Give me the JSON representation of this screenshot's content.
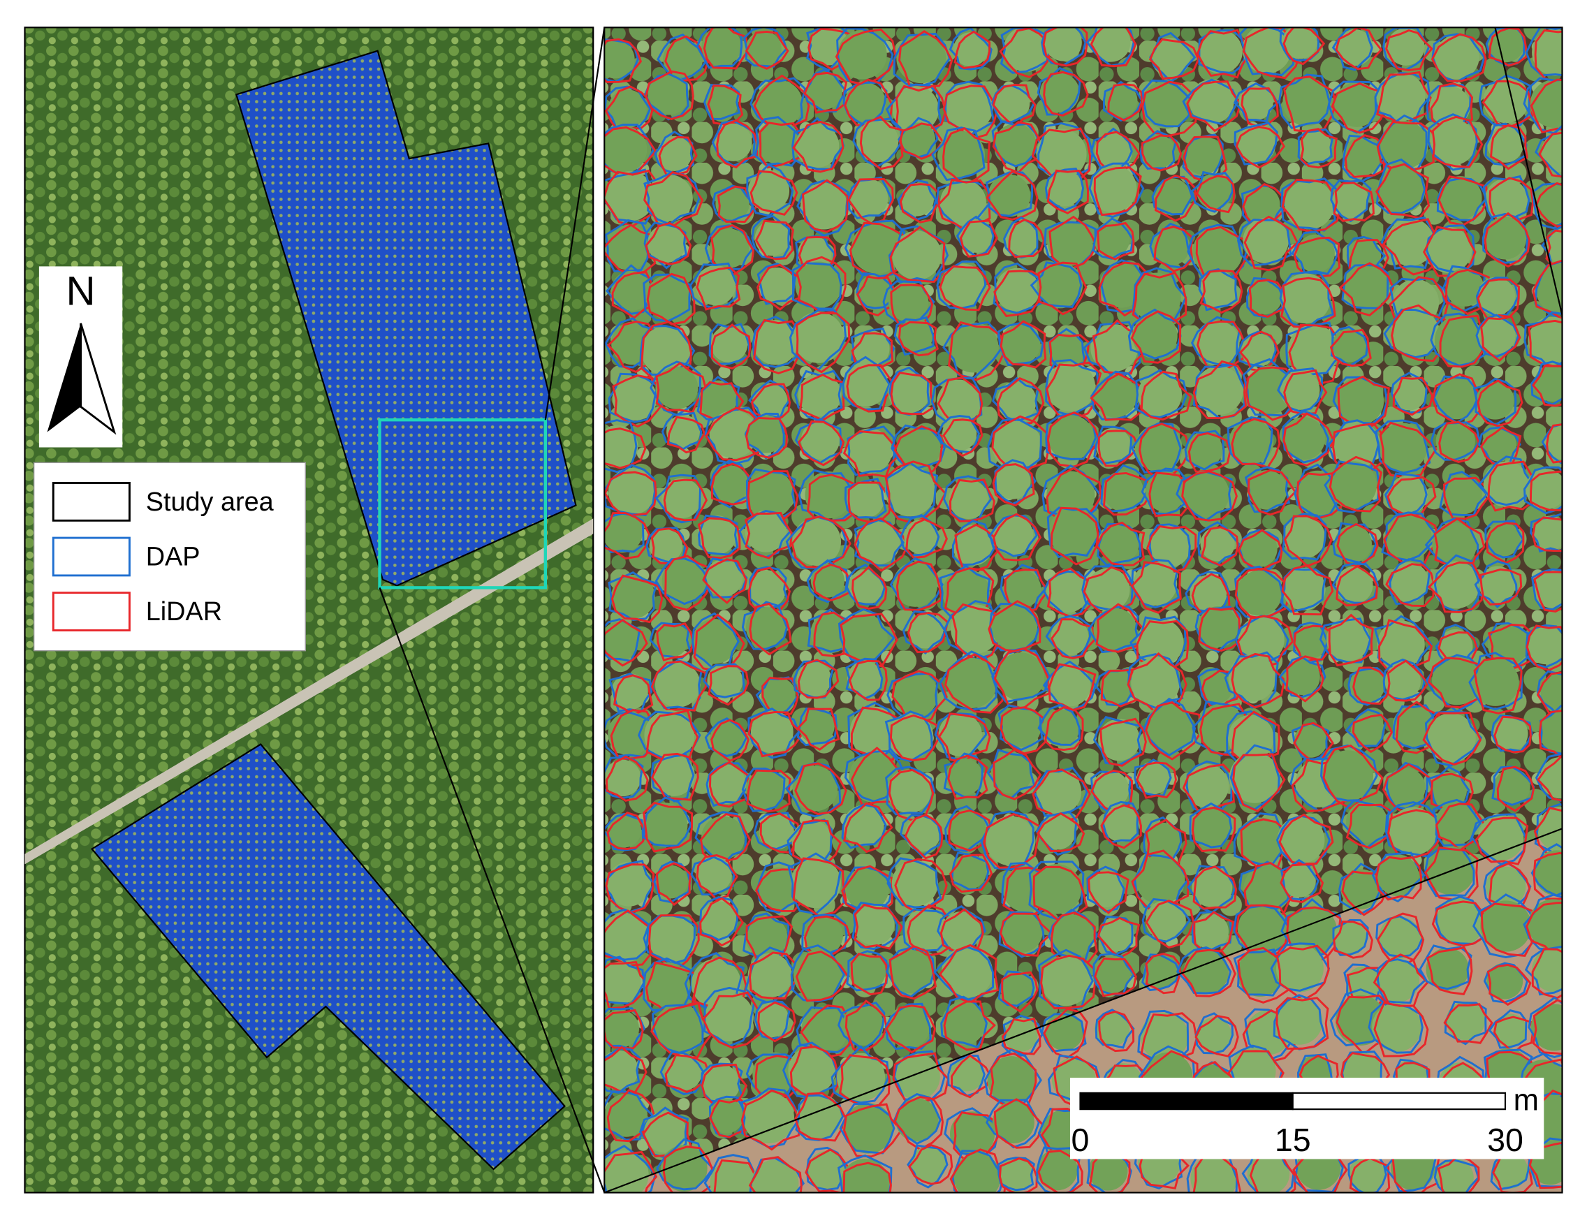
{
  "north_arrow": {
    "label": "N"
  },
  "legend": {
    "items": [
      {
        "label": "Study area",
        "color": "#000000"
      },
      {
        "label": "DAP",
        "color": "#1f6fd0"
      },
      {
        "label": "LiDAR",
        "color": "#e8262a"
      }
    ]
  },
  "scale_bar": {
    "ticks": [
      0,
      15,
      30
    ],
    "unit": "m"
  }
}
